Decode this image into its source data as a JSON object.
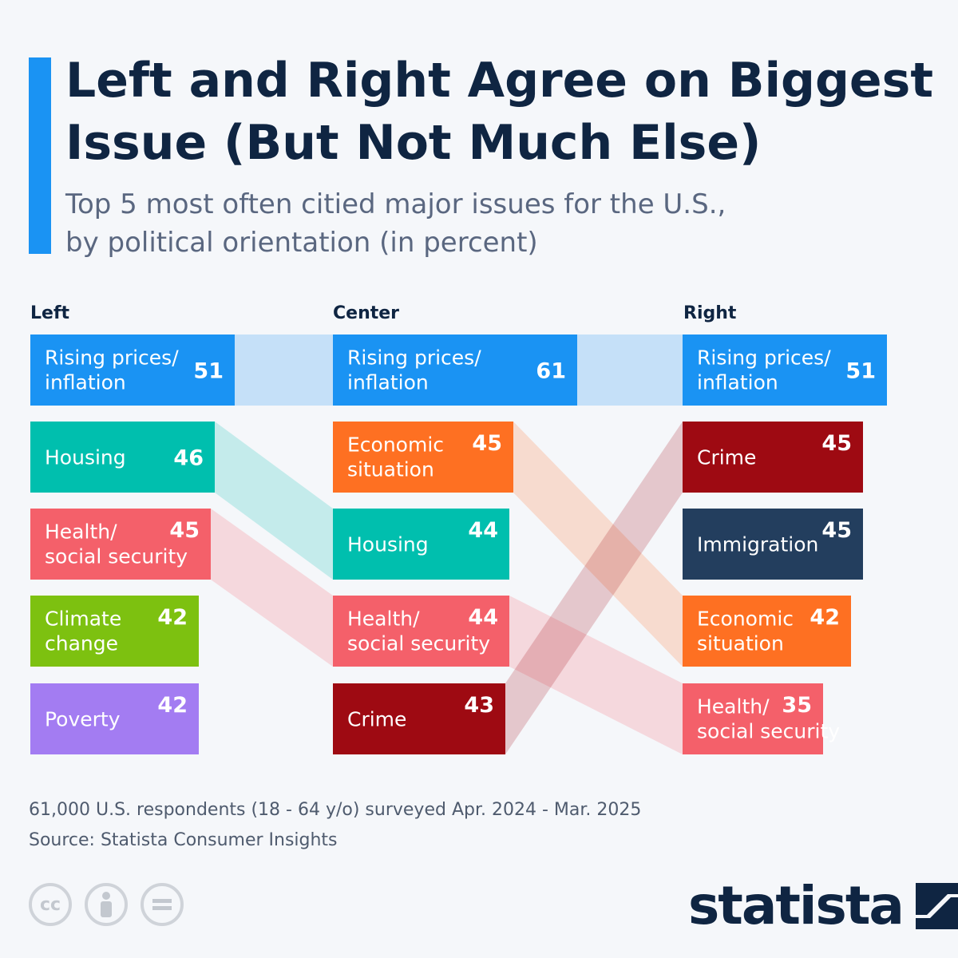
{
  "title": "Left and Right Agree on Biggest Issue (But Not Much Else)",
  "subtitle_line1": "Top 5 most often citied major issues for the U.S.,",
  "subtitle_line2": "by political orientation (in percent)",
  "chart_data": {
    "type": "bar",
    "title": "Left and Right Agree on Biggest Issue (But Not Much Else)",
    "subtitle": "Top 5 most often citied major issues for the U.S., by political orientation (in percent)",
    "unit": "percent",
    "groups": [
      {
        "name": "Left",
        "items": [
          {
            "label": [
              "Rising prices/",
              "inflation"
            ],
            "value": 51,
            "issue": "inflation"
          },
          {
            "label": [
              "Housing"
            ],
            "value": 46,
            "issue": "housing"
          },
          {
            "label": [
              "Health/",
              "social security"
            ],
            "value": 45,
            "issue": "health"
          },
          {
            "label": [
              "Climate",
              "change"
            ],
            "value": 42,
            "issue": "climate"
          },
          {
            "label": [
              "Poverty"
            ],
            "value": 42,
            "issue": "poverty"
          }
        ]
      },
      {
        "name": "Center",
        "items": [
          {
            "label": [
              "Rising prices/",
              "inflation"
            ],
            "value": 61,
            "issue": "inflation"
          },
          {
            "label": [
              "Economic",
              "situation"
            ],
            "value": 45,
            "issue": "economy"
          },
          {
            "label": [
              "Housing"
            ],
            "value": 44,
            "issue": "housing"
          },
          {
            "label": [
              "Health/",
              "social security"
            ],
            "value": 44,
            "issue": "health"
          },
          {
            "label": [
              "Crime"
            ],
            "value": 43,
            "issue": "crime"
          }
        ]
      },
      {
        "name": "Right",
        "items": [
          {
            "label": [
              "Rising prices/",
              "inflation"
            ],
            "value": 51,
            "issue": "inflation"
          },
          {
            "label": [
              "Crime"
            ],
            "value": 45,
            "issue": "crime"
          },
          {
            "label": [
              "Immigration"
            ],
            "value": 45,
            "issue": "immigration"
          },
          {
            "label": [
              "Economic",
              "situation"
            ],
            "value": 42,
            "issue": "economy"
          },
          {
            "label": [
              "Health/",
              "social security"
            ],
            "value": 35,
            "issue": "health"
          }
        ]
      }
    ],
    "colors": {
      "inflation": "#1a93f3",
      "housing": "#00bfae",
      "health": "#f4606a",
      "climate": "#7dc110",
      "poverty": "#a37cf2",
      "economy": "#fe7022",
      "crime": "#9e0a12",
      "immigration": "#233e5e"
    }
  },
  "footer": {
    "note": "61,000 U.S. respondents (18 - 64 y/o) surveyed Apr. 2024 - Mar. 2025",
    "source": "Source: Statista Consumer Insights"
  },
  "license_icons": [
    "cc-icon",
    "person-icon",
    "equals-icon"
  ],
  "brand": "statista"
}
